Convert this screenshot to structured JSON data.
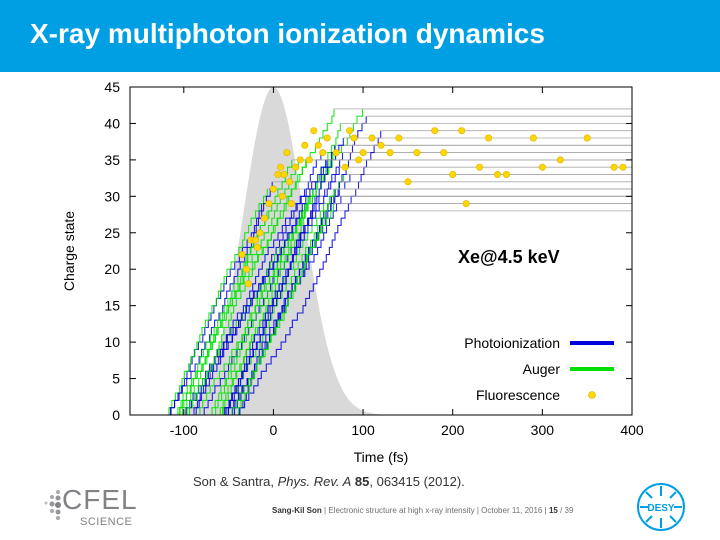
{
  "slide": {
    "title": "X-ray multiphoton ionization dynamics",
    "citation": {
      "authors": "Son & Santra,",
      "journal": "Phys. Rev. A",
      "volume": "85",
      "pages": ", 063415 (2012)."
    },
    "footer": {
      "author": "Sang-Kil Son",
      "talk": "Electronic structure at high x-ray intensity",
      "date": "October 11, 2016",
      "page": "15",
      "total": "/ 39",
      "sep": "|"
    },
    "logos": {
      "cfel_word": "CFEL",
      "cfel_sub": "SCIENCE",
      "desy_word": "DESY"
    }
  },
  "chart_data": {
    "type": "line",
    "title": "",
    "xlabel": "Time (fs)",
    "ylabel": "Charge state",
    "xlim": [
      -160,
      400
    ],
    "ylim": [
      0,
      45
    ],
    "xticks": [
      -100,
      0,
      100,
      200,
      300,
      400
    ],
    "yticks": [
      0,
      5,
      10,
      15,
      20,
      25,
      30,
      35,
      40,
      45
    ],
    "grid": false,
    "annotation": "Xe@4.5 keV",
    "legend_position": "bottom-right",
    "legend": [
      {
        "label": "Photoionization",
        "color": "#0000dd",
        "marker": "line"
      },
      {
        "label": "Auger",
        "color": "#00e000",
        "marker": "line"
      },
      {
        "label": "Fluorescence",
        "color": "#ffd700",
        "marker": "circle"
      }
    ],
    "pulse": {
      "center": 0,
      "fwhm": 80,
      "peak_charge_scale": 45,
      "color": "#d9d9d9"
    },
    "trajectories": {
      "count": 30,
      "description_free": true,
      "start_time_range": [
        -120,
        -40
      ],
      "final_charge_range": [
        28,
        42
      ],
      "colors": {
        "photoionization": "#0000dd",
        "auger": "#00e000",
        "tail": "#aaaaaa"
      }
    },
    "fluorescence_points": [
      [
        -35,
        22
      ],
      [
        -30,
        20
      ],
      [
        -28,
        18
      ],
      [
        -25,
        24
      ],
      [
        -20,
        24
      ],
      [
        -18,
        23
      ],
      [
        -15,
        25
      ],
      [
        -10,
        27
      ],
      [
        -5,
        29
      ],
      [
        0,
        31
      ],
      [
        5,
        33
      ],
      [
        8,
        34
      ],
      [
        10,
        30
      ],
      [
        12,
        33
      ],
      [
        15,
        36
      ],
      [
        18,
        32
      ],
      [
        20,
        29
      ],
      [
        25,
        34
      ],
      [
        30,
        35
      ],
      [
        35,
        37
      ],
      [
        40,
        35
      ],
      [
        45,
        39
      ],
      [
        50,
        37
      ],
      [
        55,
        36
      ],
      [
        60,
        38
      ],
      [
        70,
        36
      ],
      [
        80,
        34
      ],
      [
        85,
        39
      ],
      [
        90,
        38
      ],
      [
        95,
        35
      ],
      [
        100,
        36
      ],
      [
        110,
        38
      ],
      [
        120,
        37
      ],
      [
        130,
        36
      ],
      [
        140,
        38
      ],
      [
        150,
        32
      ],
      [
        160,
        36
      ],
      [
        180,
        39
      ],
      [
        190,
        36
      ],
      [
        200,
        33
      ],
      [
        210,
        39
      ],
      [
        215,
        29
      ],
      [
        230,
        34
      ],
      [
        240,
        38
      ],
      [
        250,
        33
      ],
      [
        260,
        33
      ],
      [
        290,
        38
      ],
      [
        300,
        34
      ],
      [
        320,
        35
      ],
      [
        350,
        38
      ],
      [
        380,
        34
      ],
      [
        390,
        34
      ]
    ]
  }
}
